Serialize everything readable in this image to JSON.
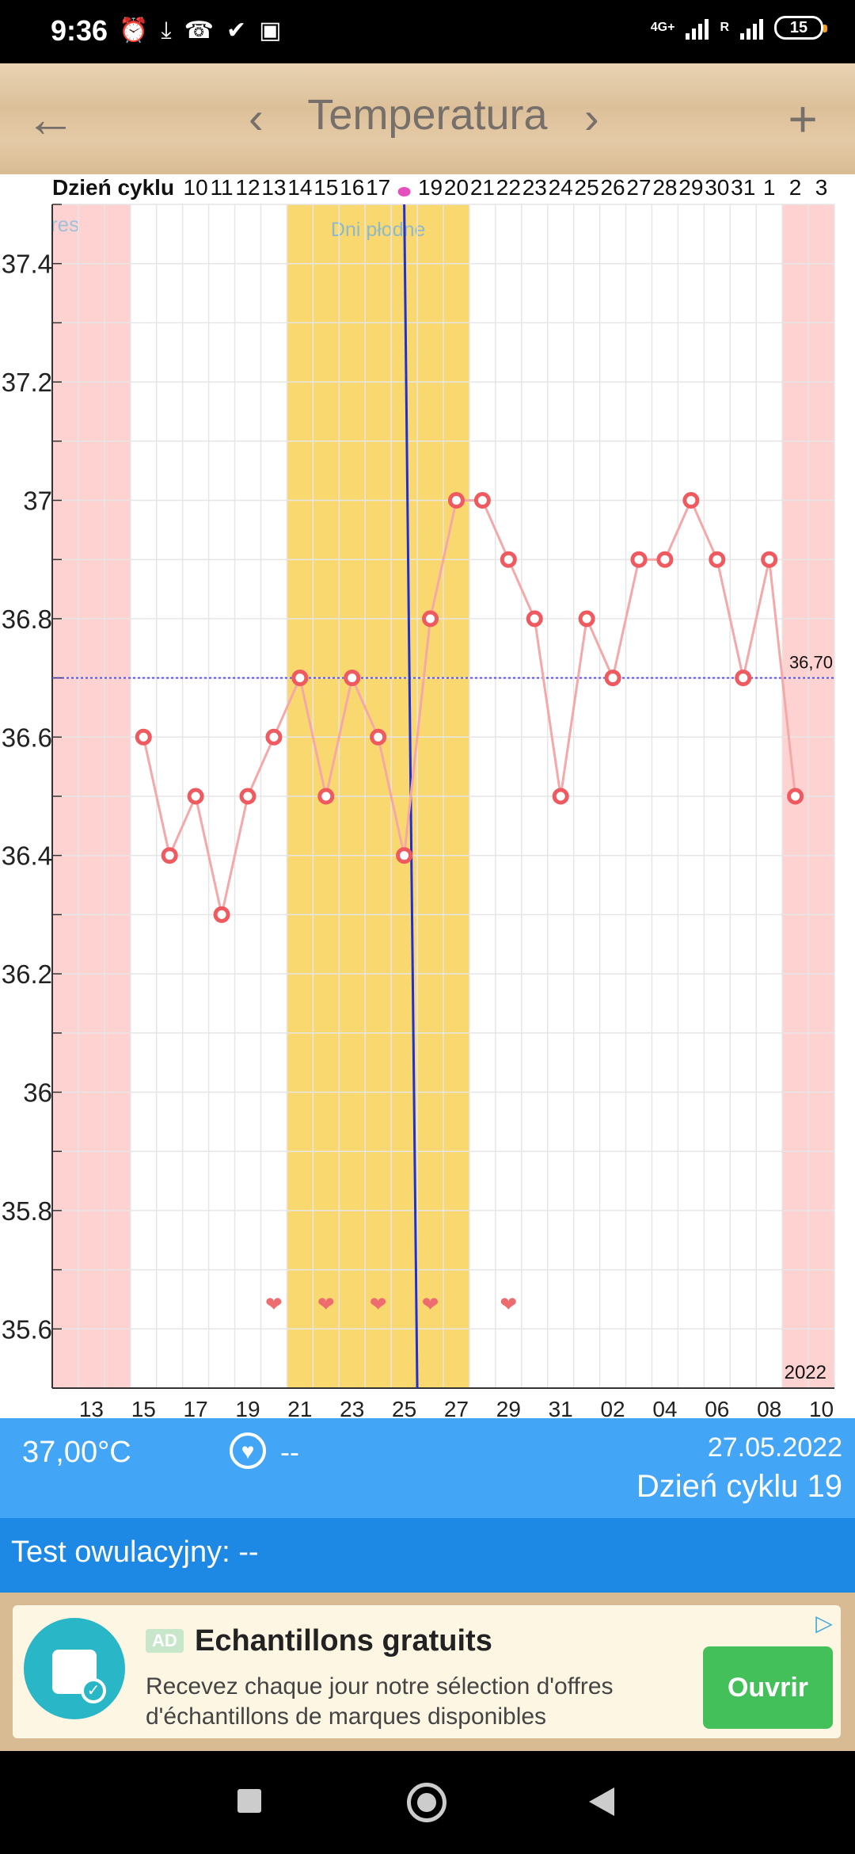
{
  "status_bar": {
    "time": "9:36",
    "icons": [
      "alarm-icon",
      "download-icon",
      "missed-call-icon",
      "check-icon",
      "game-icon"
    ],
    "network_1": "4G+",
    "network_2": "R",
    "battery": "15"
  },
  "app_bar": {
    "title": "Temperatura",
    "back_icon": "arrow-left-icon",
    "prev_icon": "chevron-left-icon",
    "next_icon": "chevron-right-icon",
    "add_icon": "plus-icon"
  },
  "chart_data": {
    "type": "line",
    "top_header_label": "Dzień cyklu",
    "top_day_labels": [
      {
        "col": 5,
        "text": "10"
      },
      {
        "col": 6,
        "text": "11"
      },
      {
        "col": 7,
        "text": "12"
      },
      {
        "col": 8,
        "text": "13"
      },
      {
        "col": 9,
        "text": "14"
      },
      {
        "col": 10,
        "text": "15"
      },
      {
        "col": 11,
        "text": "16"
      },
      {
        "col": 12,
        "text": "17"
      },
      {
        "col": 14,
        "text": "19"
      },
      {
        "col": 15,
        "text": "20"
      },
      {
        "col": 16,
        "text": "21"
      },
      {
        "col": 17,
        "text": "22"
      },
      {
        "col": 18,
        "text": "23"
      },
      {
        "col": 19,
        "text": "24"
      },
      {
        "col": 20,
        "text": "25"
      },
      {
        "col": 21,
        "text": "26"
      },
      {
        "col": 22,
        "text": "27"
      },
      {
        "col": 23,
        "text": "28"
      },
      {
        "col": 24,
        "text": "29"
      },
      {
        "col": 25,
        "text": "30"
      },
      {
        "col": 26,
        "text": "31"
      },
      {
        "col": 27,
        "text": "1"
      },
      {
        "col": 28,
        "text": "2"
      },
      {
        "col": 29,
        "text": "3"
      }
    ],
    "ovulation_marker_col": 13,
    "bottom_date_labels": [
      {
        "col": 1,
        "text": "13"
      },
      {
        "col": 3,
        "text": "15"
      },
      {
        "col": 5,
        "text": "17"
      },
      {
        "col": 7,
        "text": "19"
      },
      {
        "col": 9,
        "text": "21"
      },
      {
        "col": 11,
        "text": "23"
      },
      {
        "col": 13,
        "text": "25"
      },
      {
        "col": 15,
        "text": "27"
      },
      {
        "col": 17,
        "text": "29"
      },
      {
        "col": 19,
        "text": "31"
      },
      {
        "col": 21,
        "text": "02"
      },
      {
        "col": 23,
        "text": "04"
      },
      {
        "col": 25,
        "text": "06"
      },
      {
        "col": 27,
        "text": "08"
      },
      {
        "col": 29,
        "text": "10"
      }
    ],
    "ylim": [
      35.5,
      37.5
    ],
    "y_ticks": [
      {
        "v": 37.4,
        "t": "37.4"
      },
      {
        "v": 37.2,
        "t": "37.2"
      },
      {
        "v": 37.0,
        "t": "37"
      },
      {
        "v": 36.8,
        "t": "36.8"
      },
      {
        "v": 36.6,
        "t": "36.6"
      },
      {
        "v": 36.4,
        "t": "36.4"
      },
      {
        "v": 36.2,
        "t": "36.2"
      },
      {
        "v": 36.0,
        "t": "36"
      },
      {
        "v": 35.8,
        "t": "35.8"
      },
      {
        "v": 35.6,
        "t": "35.6"
      }
    ],
    "columns": 30,
    "temperature_series": [
      {
        "col": 3,
        "v": 36.6
      },
      {
        "col": 4,
        "v": 36.4
      },
      {
        "col": 5,
        "v": 36.5
      },
      {
        "col": 6,
        "v": 36.3
      },
      {
        "col": 7,
        "v": 36.5
      },
      {
        "col": 8,
        "v": 36.6
      },
      {
        "col": 9,
        "v": 36.7
      },
      {
        "col": 10,
        "v": 36.5
      },
      {
        "col": 11,
        "v": 36.7
      },
      {
        "col": 12,
        "v": 36.6
      },
      {
        "col": 13,
        "v": 36.4
      },
      {
        "col": 14,
        "v": 36.8
      },
      {
        "col": 15,
        "v": 37.0
      },
      {
        "col": 16,
        "v": 37.0
      },
      {
        "col": 17,
        "v": 36.9
      },
      {
        "col": 18,
        "v": 36.8
      },
      {
        "col": 19,
        "v": 36.5
      },
      {
        "col": 20,
        "v": 36.8
      },
      {
        "col": 21,
        "v": 36.7
      },
      {
        "col": 22,
        "v": 36.9
      },
      {
        "col": 23,
        "v": 36.9
      },
      {
        "col": 24,
        "v": 37.0
      },
      {
        "col": 25,
        "v": 36.9
      },
      {
        "col": 26,
        "v": 36.7
      },
      {
        "col": 27,
        "v": 36.9
      },
      {
        "col": 28,
        "v": 36.5
      }
    ],
    "coverline": {
      "value": 36.7,
      "label": "36,70"
    },
    "period_ranges": [
      {
        "from_col": 0,
        "to_col": 3,
        "label": "res"
      },
      {
        "from_col": 28,
        "to_col": 30,
        "label": ""
      }
    ],
    "fertile_range": {
      "from_col": 9,
      "to_col": 16,
      "label": "Dni płodne"
    },
    "selected_day_col": 14,
    "intercourse_cols": [
      8,
      10,
      12,
      14,
      17
    ],
    "year_label": "2022",
    "colors": {
      "period": "#ffd2d2",
      "fertile": "#f9d96f",
      "line": "#f4a8a8",
      "point": "#ee5a5f",
      "coverline": "#5a4df0",
      "selected": "#1f2fd6",
      "heart": "#ee6b6f",
      "ovulation_dot": "#e54fbe",
      "fertile_label": "#8fb9c8"
    }
  },
  "info_panel": {
    "temperature": "37,00°C",
    "intercourse_icon": "heart-icon",
    "intercourse_value": "--",
    "date": "27.05.2022",
    "cycle_day": "Dzień cyklu 19"
  },
  "ovulation_test": {
    "label": "Test owulacyjny: --"
  },
  "ad": {
    "badge": "AD",
    "headline": "Echantillons gratuits",
    "description": "Recevez chaque jour notre sélection d'offres d'échantillons de marques disponibles",
    "cta": "Ouvrir",
    "logo_icon": "shopping-bag-icon",
    "adchoices_icon": "adchoices-icon"
  },
  "nav_bar": {
    "recents_icon": "square-icon",
    "home_icon": "circle-icon",
    "back_icon": "triangle-back-icon"
  }
}
